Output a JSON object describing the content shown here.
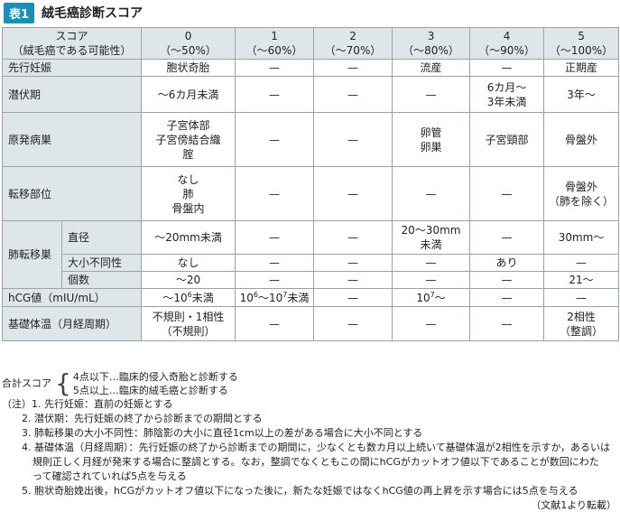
{
  "title": {
    "badge": "表1",
    "text": "絨毛癌診断スコア"
  },
  "header": {
    "label1": "スコア",
    "label2": "（絨毛癌である可能性）",
    "scores": [
      "0",
      "1",
      "2",
      "3",
      "4",
      "5"
    ],
    "ranges": [
      "（〜50%）",
      "（〜60%）",
      "（〜70%）",
      "（〜80%）",
      "（〜90%）",
      "（〜100%）"
    ]
  },
  "rows": [
    {
      "label": "先行妊娠",
      "cells": [
        "胞状奇胎",
        "—",
        "—",
        "流産",
        "—",
        "正期産"
      ]
    },
    {
      "label": "潜伏期",
      "cells": [
        "〜6カ月未満",
        "—",
        "—",
        "—",
        "6カ月〜\n3年未満",
        "3年〜"
      ]
    },
    {
      "label": "原発病巣",
      "cells": [
        "子宮体部\n子宮傍結合織\n腟",
        "—",
        "—",
        "卵管\n卵巣",
        "子宮頸部",
        "骨盤外"
      ]
    },
    {
      "label": "転移部位",
      "cells": [
        "なし\n肺\n骨盤内",
        "—",
        "—",
        "—",
        "—",
        "骨盤外\n（肺を除く）"
      ]
    }
  ],
  "lung": {
    "label": "肺転移巣",
    "rows": [
      {
        "label": "直径",
        "cells": [
          "〜20mm未満",
          "—",
          "—",
          "20〜30mm\n未満",
          "—",
          "30mm〜"
        ]
      },
      {
        "label": "大小不同性",
        "cells": [
          "なし",
          "—",
          "—",
          "—",
          "あり",
          "—"
        ]
      },
      {
        "label": "個数",
        "cells": [
          "〜20",
          "—",
          "—",
          "—",
          "—",
          "21〜"
        ]
      }
    ]
  },
  "hcg": {
    "label": "hCG値（mIU/mL）",
    "c0": "〜10",
    "c0sup": "6",
    "c0b": "未満",
    "c1a": "10",
    "c1sup1": "6",
    "c1b": "〜10",
    "c1sup2": "7",
    "c1c": "未満",
    "c2": "—",
    "c3": "10",
    "c3sup": "7",
    "c3b": "〜",
    "c4": "—",
    "c5": "—"
  },
  "bbt": {
    "label": "基礎体温（月経周期）",
    "cells": [
      "不規則・1相性\n（不規則）",
      "—",
      "—",
      "—",
      "—",
      "2相性\n（整調）"
    ]
  },
  "summary": {
    "label": "合計スコア",
    "line1": "4点以下…臨床的侵入奇胎と診断する",
    "line2": "5点以上…臨床的絨毛癌と診断する"
  },
  "notes": {
    "n1": "（注）1. 先行妊娠：直前の妊娠とする",
    "n2": "2. 潜伏期：先行妊娠の終了から診断までの期間とする",
    "n3": "3. 肺転移巣の大小不同性：肺陰影の大小に直径1cm以上の差がある場合に大小不同とする",
    "n4a": "4. 基礎体温（月経周期）：先行妊娠の終了から診断までの期間に，少なくとも数カ月以上続いて基礎体温が2相性を示すか，あるいは",
    "n4b": "規則正しく月経が発来する場合に整調とする。なお，整調でなくともこの間にhCGがカットオフ値以下であることが数回にわた",
    "n4c": "って確認されていれば5点を与える",
    "n5": "5. 胞状奇胎娩出後，hCGがカットオフ値以下になった後に，新たな妊娠ではなくhCG値の再上昇を示す場合には5点を与える",
    "source": "（文献1より転載）"
  }
}
